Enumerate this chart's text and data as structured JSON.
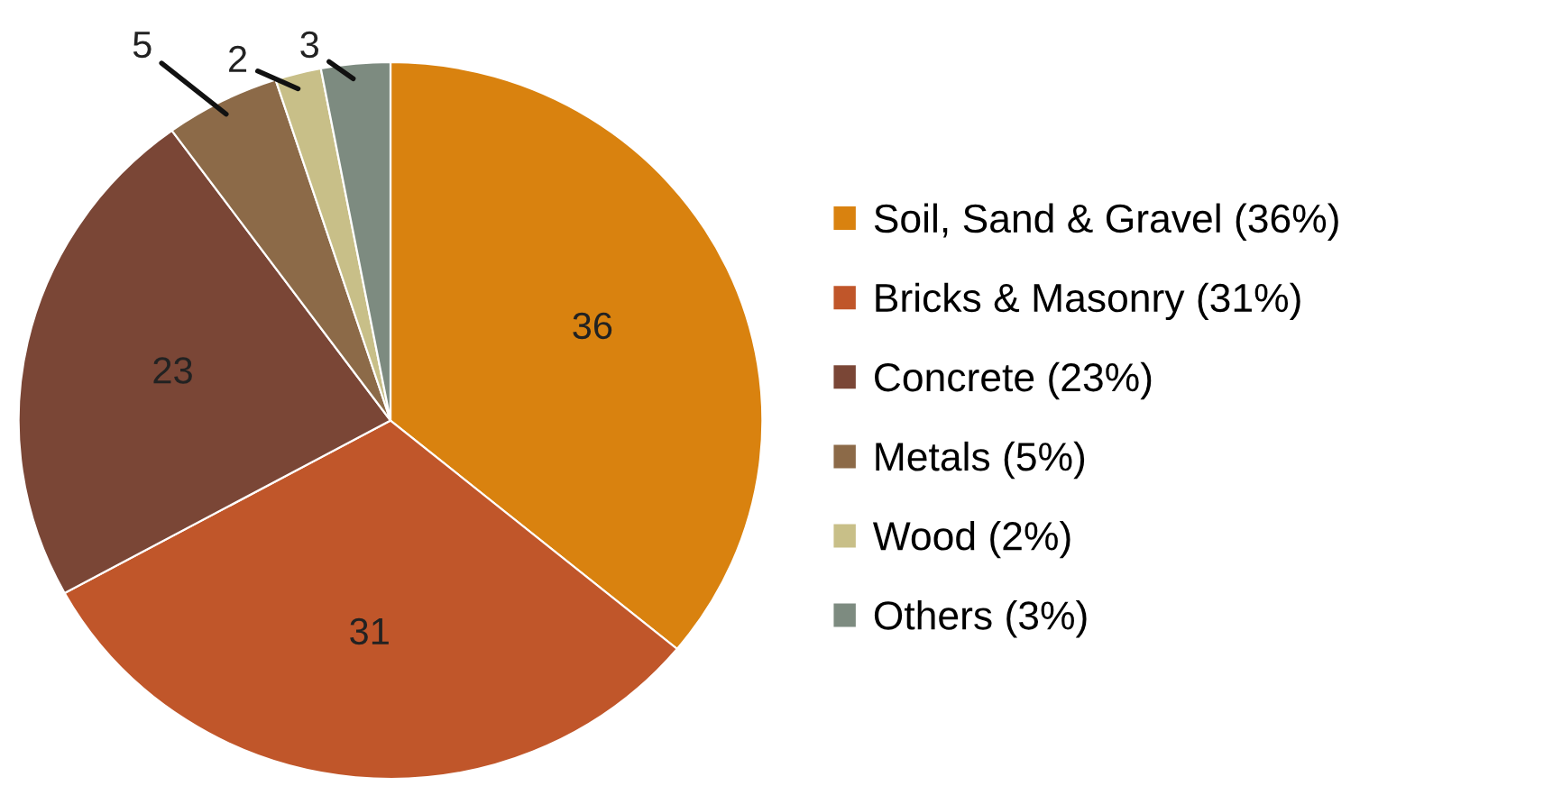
{
  "chart_data": {
    "type": "pie",
    "categories": [
      "Soil, Sand & Gravel (36%)",
      "Bricks & Masonry (31%)",
      "Concrete (23%)",
      "Metals (5%)",
      "Wood (2%)",
      "Others (3%)"
    ],
    "values": [
      36,
      31,
      23,
      5,
      2,
      3
    ],
    "colors": [
      "#d9820f",
      "#c0562a",
      "#7a4636",
      "#8c6a48",
      "#c8bf88",
      "#7d8b80"
    ],
    "data_labels": true,
    "legend": "right"
  }
}
